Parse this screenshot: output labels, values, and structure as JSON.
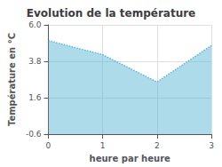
{
  "chart_data": {
    "type": "area",
    "title": "Evolution de la température",
    "xlabel": "heure par heure",
    "ylabel": "Température en °C",
    "x": [
      0,
      1,
      2,
      3
    ],
    "series": [
      {
        "color": "#5bb8d4",
        "line_style": "dotted",
        "values": [
          5.05,
          4.2,
          2.55,
          4.75
        ]
      }
    ],
    "xlim": [
      0,
      3
    ],
    "xticks": [
      0,
      1,
      2,
      3
    ],
    "ylim": [
      -0.6,
      6.0
    ],
    "yticks": [
      -0.6,
      1.6,
      3.8,
      {
        "value": 6,
        "label": "6.0"
      }
    ],
    "grid": true
  }
}
